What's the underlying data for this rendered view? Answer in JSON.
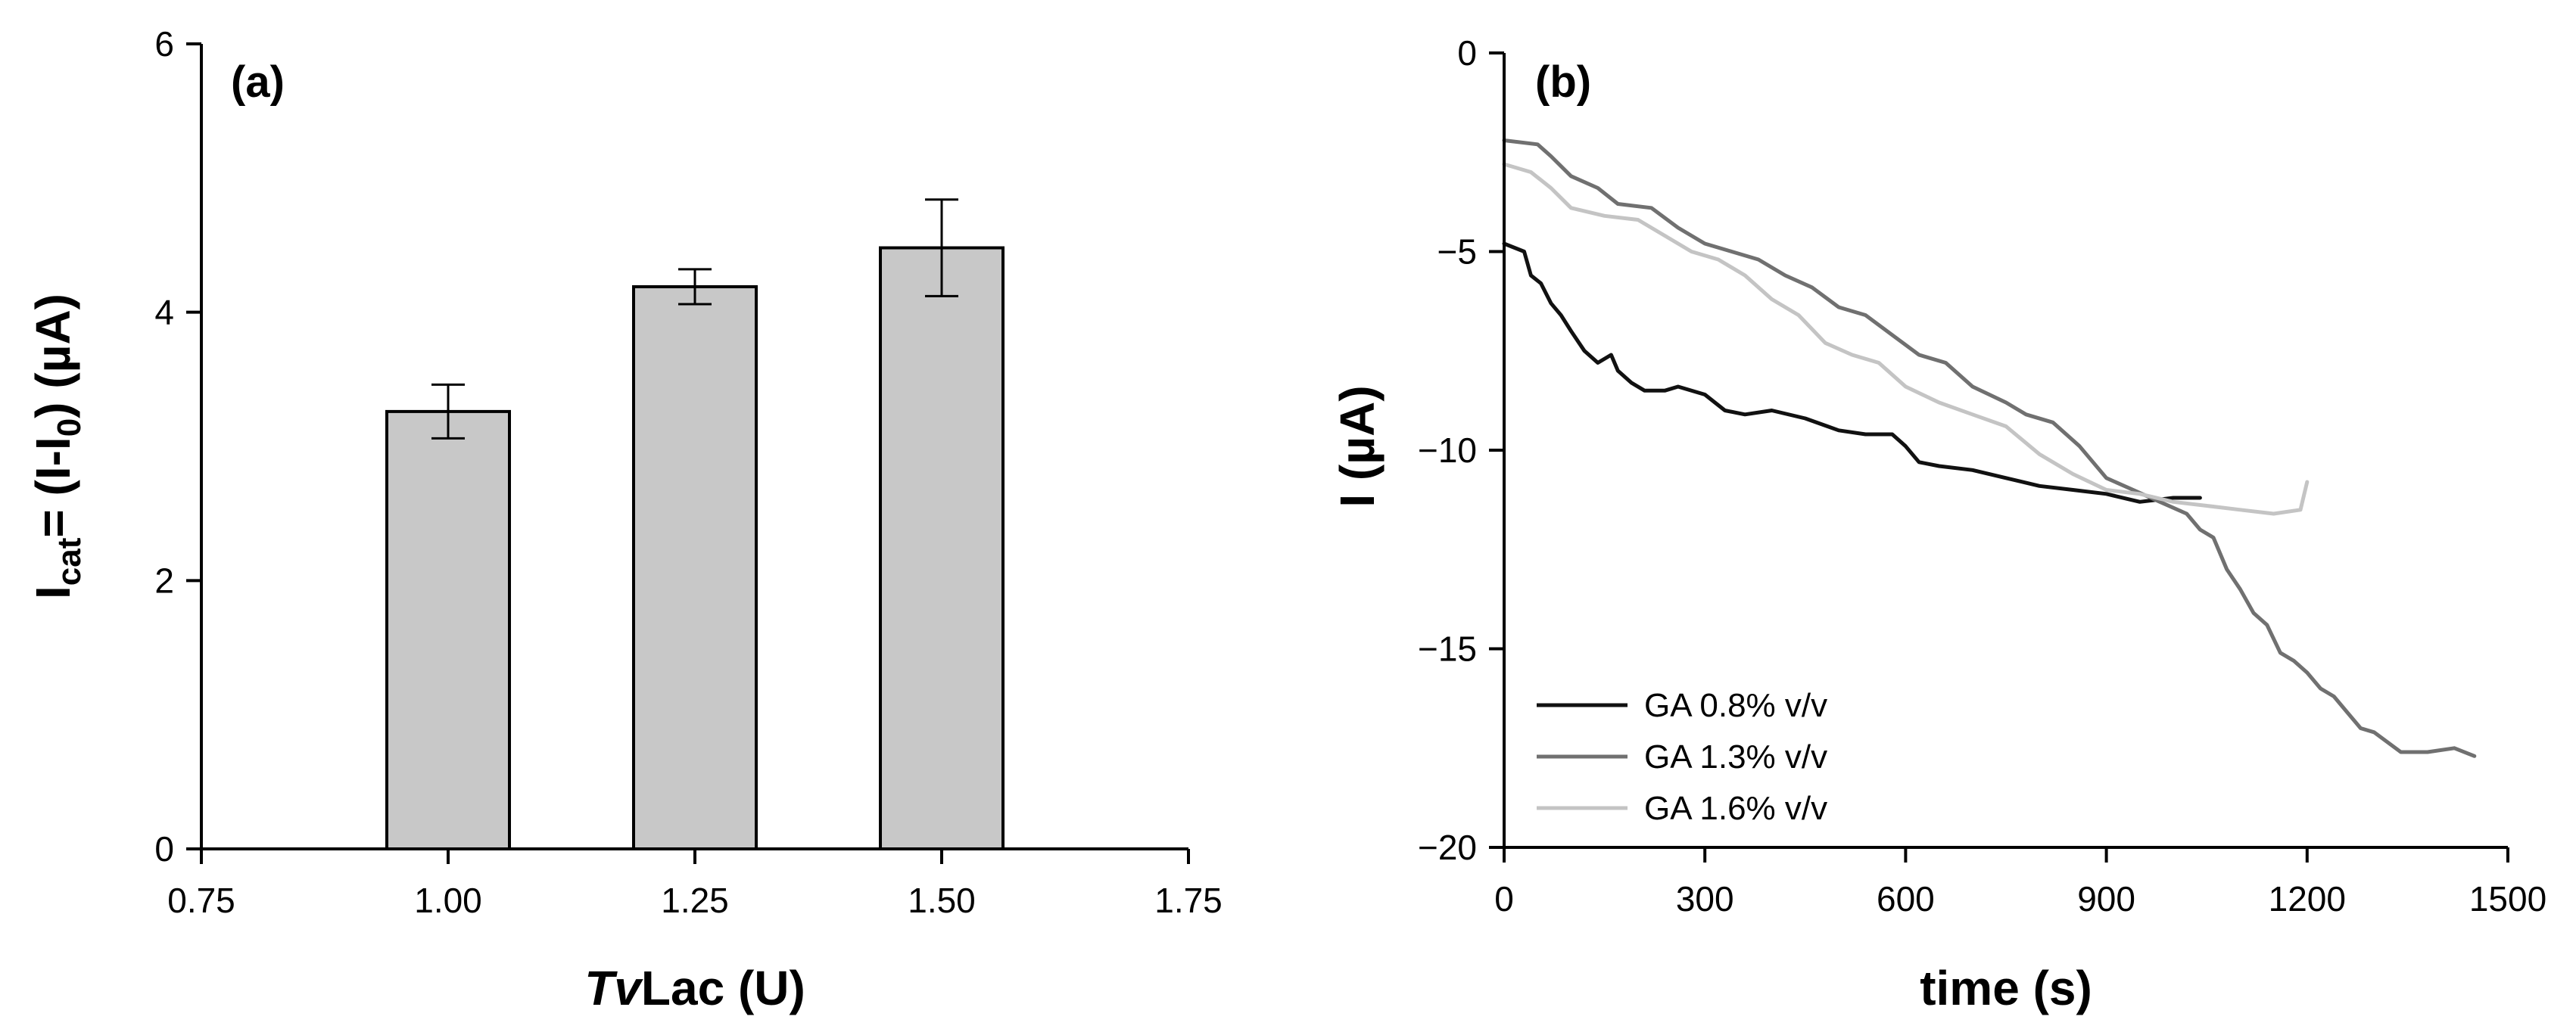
{
  "chart_data": [
    {
      "type": "bar",
      "panel_label": "(a)",
      "x": [
        1.0,
        1.25,
        1.5
      ],
      "values": [
        3.26,
        4.19,
        4.48
      ],
      "errors": [
        0.2,
        0.13,
        0.36
      ],
      "bar_color": "#c8c8c8",
      "xlim": [
        0.75,
        1.75
      ],
      "ylim": [
        0,
        6
      ],
      "xticks": [
        "0.75",
        "1.00",
        "1.25",
        "1.50",
        "1.75"
      ],
      "yticks": [
        "0",
        "2",
        "4",
        "6"
      ],
      "xlabel": {
        "italic": "Tv",
        "rest": "Lac (U)"
      },
      "ylabel": {
        "main": "I",
        "sub1": "cat",
        "mid": "= (I-I",
        "sub2": "0",
        "end": ") (µA)"
      }
    },
    {
      "type": "line",
      "panel_label": "(b)",
      "xlabel": "time (s)",
      "ylabel": "I (µA)",
      "xlim": [
        0,
        1500
      ],
      "ylim": [
        -20,
        0
      ],
      "xticks": [
        "0",
        "300",
        "600",
        "900",
        "1200",
        "1500"
      ],
      "yticks": [
        "0",
        "−5",
        "−10",
        "−15",
        "−20"
      ],
      "legend_position": "bottom-left",
      "series": [
        {
          "name": "GA 0.8% v/v",
          "color": "#111111",
          "x": [
            0,
            30,
            40,
            55,
            70,
            85,
            100,
            120,
            140,
            160,
            170,
            190,
            210,
            240,
            260,
            300,
            330,
            360,
            400,
            450,
            500,
            540,
            580,
            600,
            620,
            650,
            700,
            750,
            800,
            850,
            900,
            950,
            1000,
            1040
          ],
          "y": [
            -4.8,
            -5.0,
            -5.6,
            -5.8,
            -6.3,
            -6.6,
            -7.0,
            -7.5,
            -7.8,
            -7.6,
            -8.0,
            -8.3,
            -8.5,
            -8.5,
            -8.4,
            -8.6,
            -9.0,
            -9.1,
            -9.0,
            -9.2,
            -9.5,
            -9.6,
            -9.6,
            -9.9,
            -10.3,
            -10.4,
            -10.5,
            -10.7,
            -10.9,
            -11.0,
            -11.1,
            -11.3,
            -11.2,
            -11.2
          ]
        },
        {
          "name": "GA 1.3% v/v",
          "color": "#707070",
          "x": [
            0,
            50,
            70,
            100,
            140,
            170,
            220,
            260,
            300,
            340,
            380,
            420,
            460,
            500,
            540,
            580,
            620,
            660,
            700,
            750,
            780,
            820,
            860,
            880,
            900,
            940,
            980,
            1020,
            1040,
            1060,
            1080,
            1100,
            1120,
            1140,
            1160,
            1180,
            1200,
            1220,
            1240,
            1260,
            1280,
            1300,
            1340,
            1380,
            1420,
            1450
          ],
          "y": [
            -2.2,
            -2.3,
            -2.6,
            -3.1,
            -3.4,
            -3.8,
            -3.9,
            -4.4,
            -4.8,
            -5.0,
            -5.2,
            -5.6,
            -5.9,
            -6.4,
            -6.6,
            -7.1,
            -7.6,
            -7.8,
            -8.4,
            -8.8,
            -9.1,
            -9.3,
            -9.9,
            -10.3,
            -10.7,
            -11.0,
            -11.3,
            -11.6,
            -12.0,
            -12.2,
            -13.0,
            -13.5,
            -14.1,
            -14.4,
            -15.1,
            -15.3,
            -15.6,
            -16.0,
            -16.2,
            -16.6,
            -17.0,
            -17.1,
            -17.6,
            -17.6,
            -17.5,
            -17.7
          ]
        },
        {
          "name": "GA 1.6% v/v",
          "color": "#c4c4c4",
          "x": [
            0,
            40,
            70,
            100,
            150,
            200,
            240,
            280,
            320,
            360,
            400,
            440,
            480,
            520,
            560,
            600,
            650,
            700,
            750,
            800,
            850,
            900,
            950,
            1000,
            1050,
            1100,
            1150,
            1190,
            1200
          ],
          "y": [
            -2.8,
            -3.0,
            -3.4,
            -3.9,
            -4.1,
            -4.2,
            -4.6,
            -5.0,
            -5.2,
            -5.6,
            -6.2,
            -6.6,
            -7.3,
            -7.6,
            -7.8,
            -8.4,
            -8.8,
            -9.1,
            -9.4,
            -10.1,
            -10.6,
            -11.0,
            -11.1,
            -11.3,
            -11.4,
            -11.5,
            -11.6,
            -11.5,
            -10.8
          ]
        }
      ]
    }
  ]
}
